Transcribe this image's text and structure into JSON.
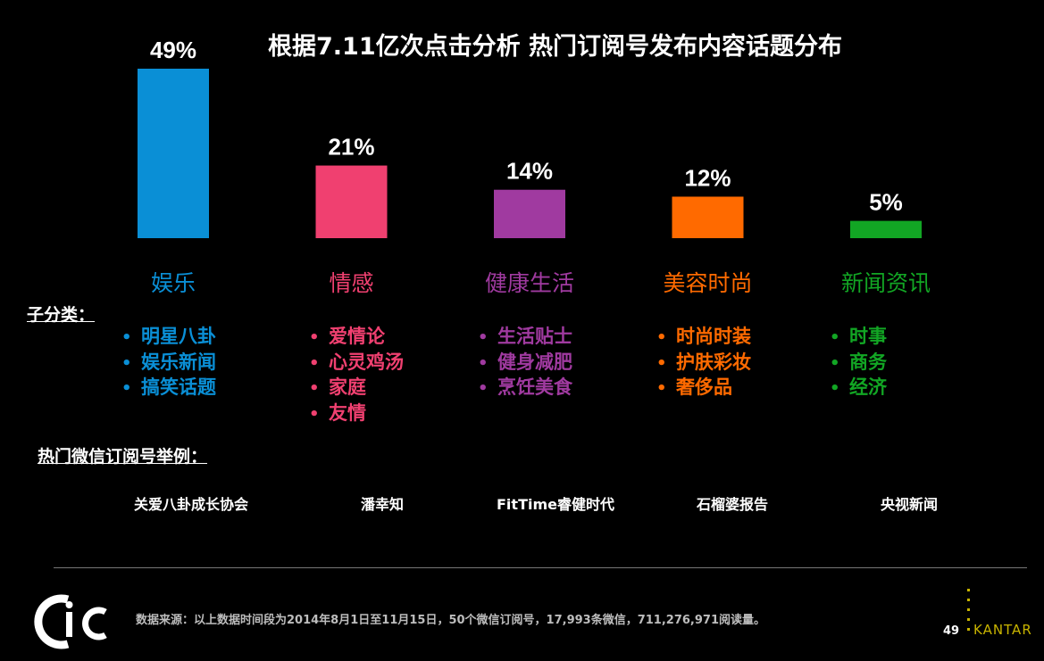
{
  "title": "根据7.11亿次点击分析 热门订阅号发布内容话题分布",
  "chart_data": {
    "type": "bar",
    "categories": [
      "娱乐",
      "情感",
      "健康生活",
      "美容时尚",
      "新闻资讯"
    ],
    "values": [
      49,
      21,
      14,
      12,
      5
    ],
    "value_labels": [
      "49%",
      "21%",
      "14%",
      "12%",
      "5%"
    ],
    "colors": [
      "#0a8fd6",
      "#f04070",
      "#a03aa0",
      "#ff6a00",
      "#12a624"
    ],
    "ylim": [
      0,
      49
    ],
    "grid": false
  },
  "subcategory_heading": "子分类：",
  "subcategories": [
    [
      "明星八卦",
      "娱乐新闻",
      "搞笑话题"
    ],
    [
      "爱情论",
      "心灵鸡汤",
      "家庭",
      "友情"
    ],
    [
      "生活贴士",
      "健身减肥",
      "烹饪美食"
    ],
    [
      "时尚时装",
      "护肤彩妆",
      "奢侈品"
    ],
    [
      "时事",
      "商务",
      "经济"
    ]
  ],
  "examples_heading": "热门微信订阅号举例：",
  "examples": [
    "关爱八卦成长协会",
    "潘幸知",
    "FitTime睿健时代",
    "石榴婆报告",
    "央视新闻"
  ],
  "footer": {
    "source": "数据来源：以上数据时间段为2014年8月1日至11月15日，50个微信订阅号，17,993条微信，711,276,971阅读量。",
    "page_number": "49",
    "brand": "KANTAR",
    "logo_text": "CIC"
  }
}
